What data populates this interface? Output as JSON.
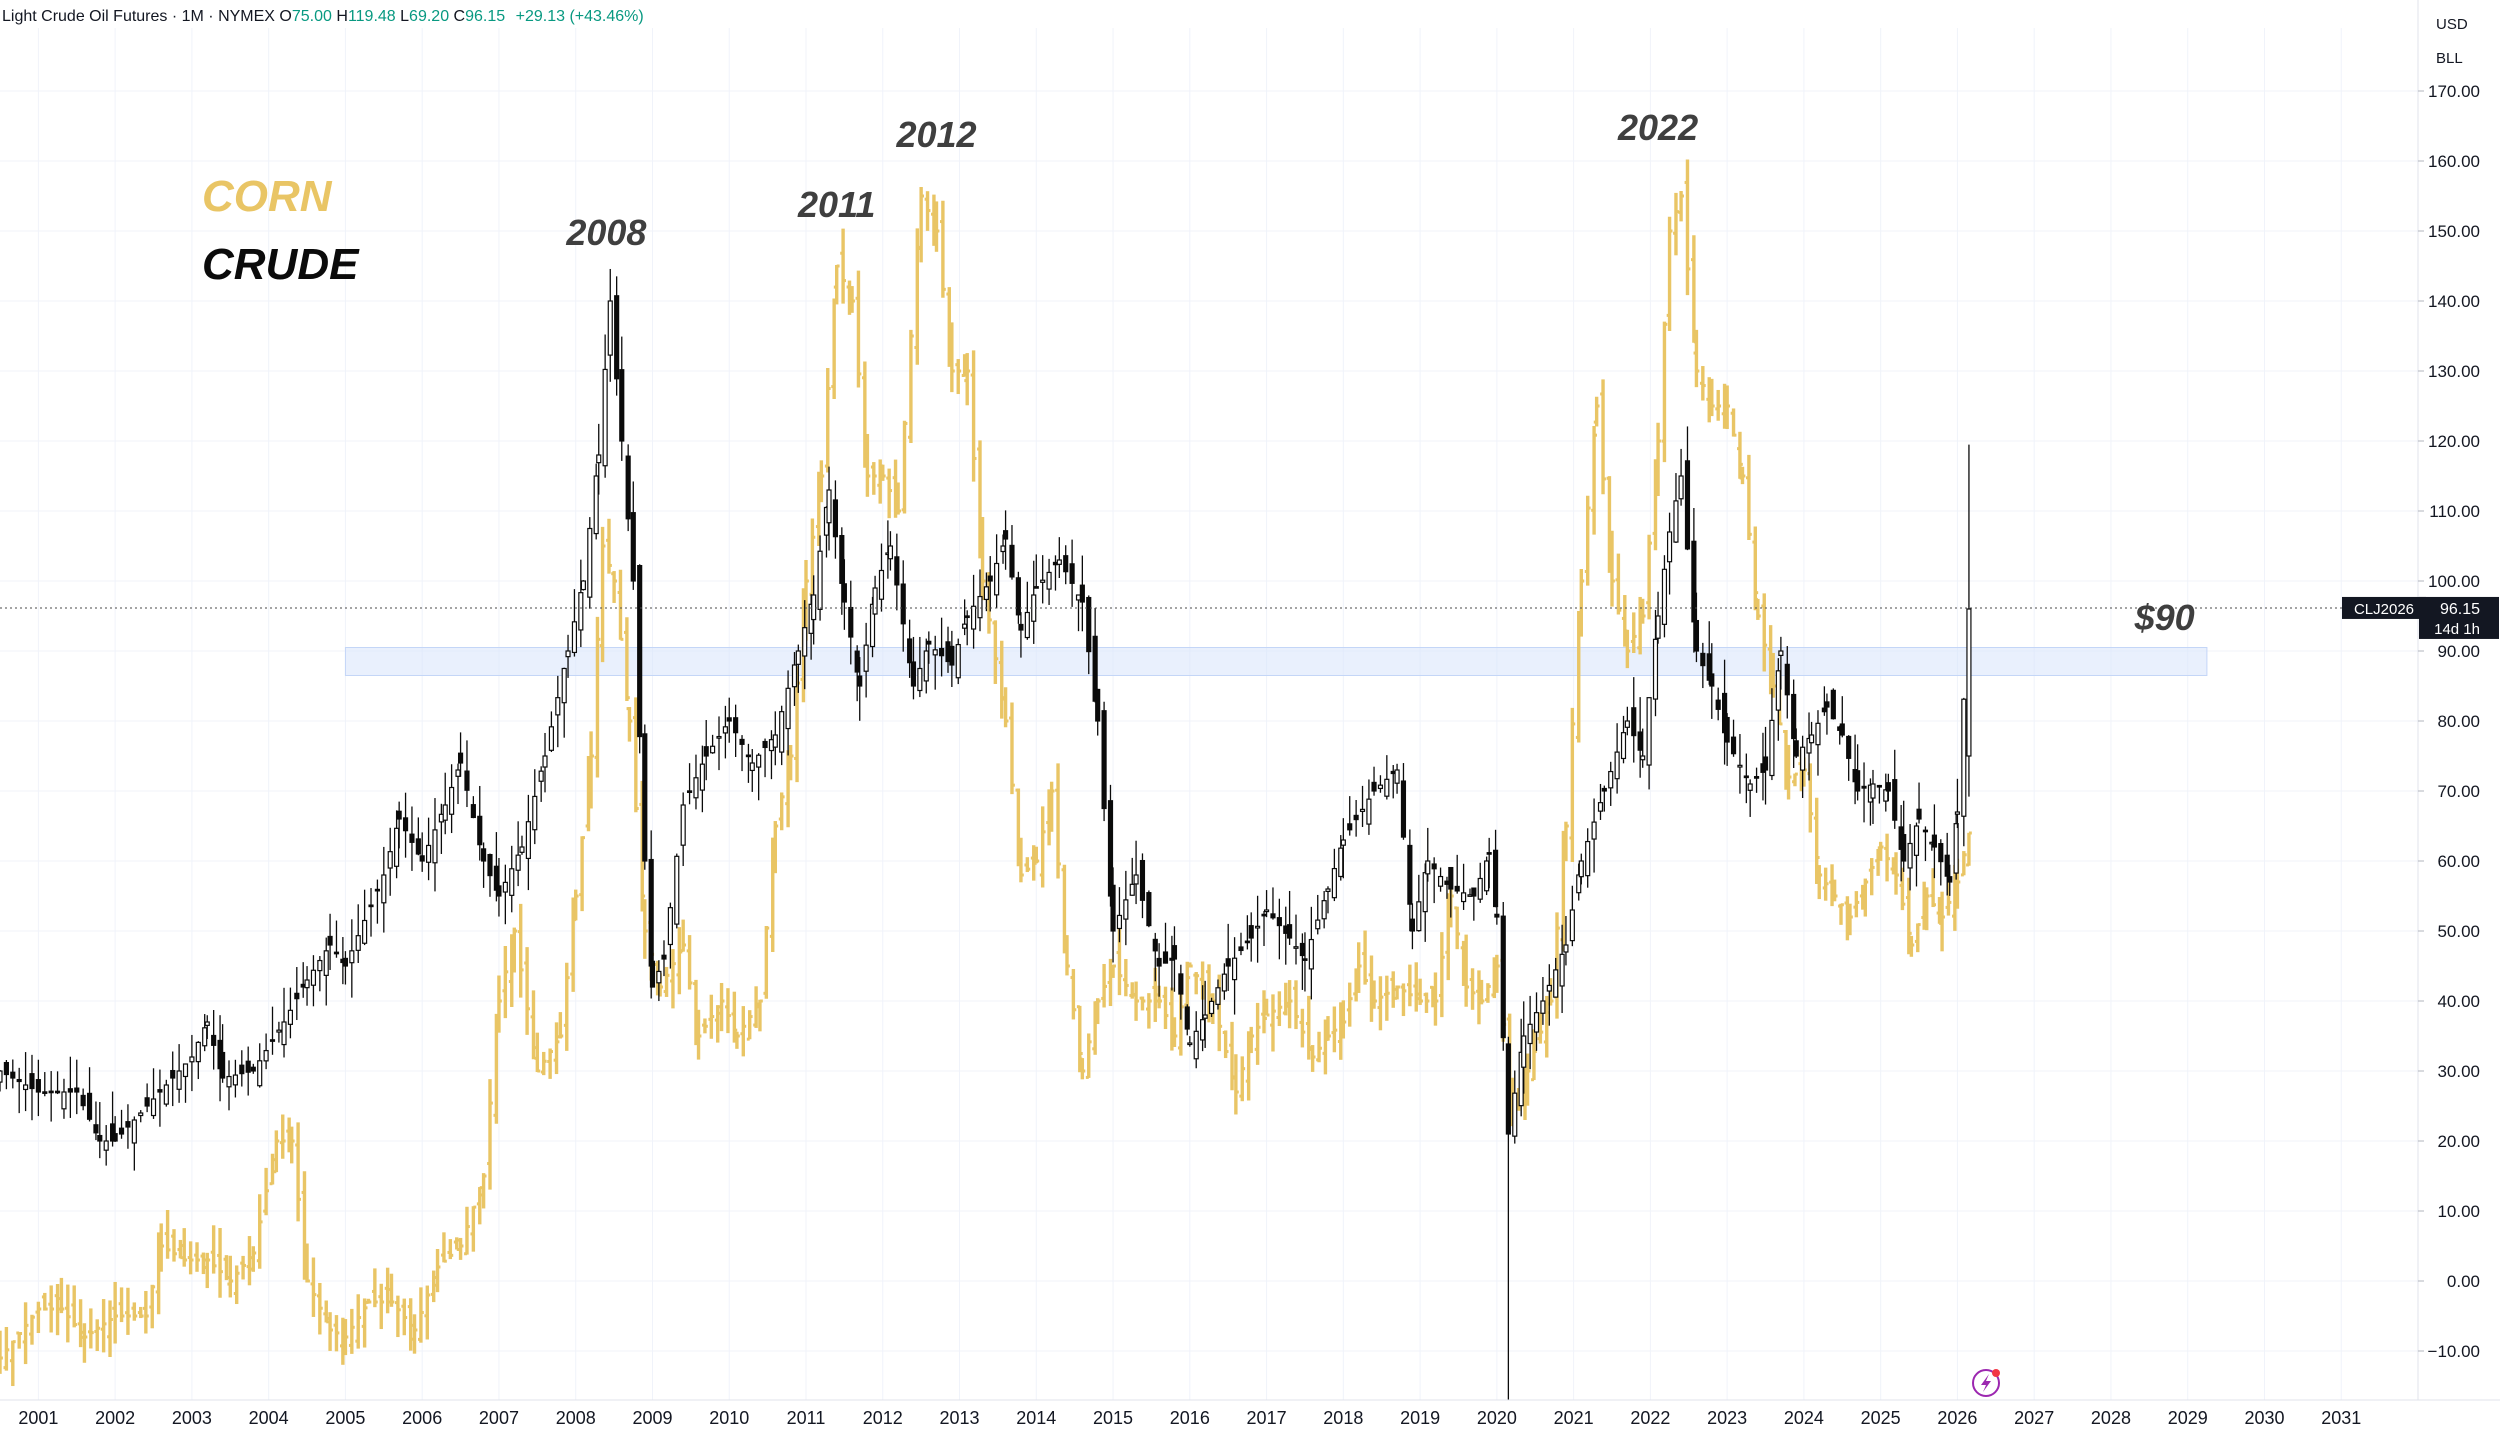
{
  "header": {
    "symbol": "Light Crude Oil Futures · 1M · NYMEX",
    "open_label": "O",
    "open_value": "75.00",
    "high_label": "H",
    "high_value": "119.48",
    "low_label": "L",
    "low_value": "69.20",
    "close_label": "C",
    "close_value": "96.15",
    "change": "+29.13 (+43.46%)"
  },
  "price_scale": {
    "currency": "USD",
    "unit": "BLL"
  },
  "legend": {
    "corn": "CORN",
    "crude": "CRUDE"
  },
  "colors": {
    "crude": "#0b0b0b",
    "corn": "#e9c565",
    "zone": "#d7e4fb",
    "label_text": "#3f3f3f",
    "axis_text": "#131722"
  },
  "price_tag": {
    "symbol": "CLJ2026",
    "price": "96.15",
    "countdown": "14d 1h"
  },
  "icons": [
    "lightning-icon"
  ],
  "chart_data": {
    "type": "candlestick",
    "title": "Light Crude Oil Futures · 1M · NYMEX",
    "x_axis": {
      "ticks": [
        "2001",
        "2002",
        "2003",
        "2004",
        "2005",
        "2006",
        "2007",
        "2008",
        "2009",
        "2010",
        "2011",
        "2012",
        "2013",
        "2014",
        "2015",
        "2016",
        "2017",
        "2018",
        "2019",
        "2020",
        "2021",
        "2022",
        "2023",
        "2024",
        "2025",
        "2026",
        "2027",
        "2028",
        "2029",
        "2030",
        "2031"
      ],
      "range": [
        2000.5,
        2032.0
      ]
    },
    "y_axis": {
      "ticks": [
        -10,
        0,
        10,
        20,
        30,
        40,
        50,
        60,
        70,
        80,
        90,
        100,
        110,
        120,
        130,
        140,
        150,
        160,
        170
      ],
      "range": [
        -17,
        179
      ],
      "position": "right"
    },
    "grid": true,
    "zone": {
      "x_from": 2005.0,
      "x_to": 2029.25,
      "y_from": 86.5,
      "y_to": 90.5
    },
    "current_price_line": 96.15,
    "annotations": [
      {
        "text": "2008",
        "x": 2008.4,
        "y": 148
      },
      {
        "text": "2011",
        "x": 2011.4,
        "y": 152
      },
      {
        "text": "2012",
        "x": 2012.7,
        "y": 162
      },
      {
        "text": "2022",
        "x": 2022.1,
        "y": 163
      },
      {
        "text": "$90",
        "x": 2028.7,
        "y": 93
      }
    ],
    "series": [
      {
        "name": "CRUDE",
        "kind": "candlestick",
        "points": [
          [
            2000.5,
            30
          ],
          [
            2001.0,
            27
          ],
          [
            2001.5,
            27
          ],
          [
            2001.8,
            20
          ],
          [
            2002.0,
            20
          ],
          [
            2002.5,
            26
          ],
          [
            2003.0,
            32
          ],
          [
            2003.2,
            37
          ],
          [
            2003.4,
            29
          ],
          [
            2003.8,
            30
          ],
          [
            2004.2,
            37
          ],
          [
            2004.5,
            43
          ],
          [
            2004.8,
            48
          ],
          [
            2005.0,
            45
          ],
          [
            2005.5,
            58
          ],
          [
            2005.7,
            66
          ],
          [
            2006.0,
            60
          ],
          [
            2006.3,
            68
          ],
          [
            2006.5,
            74
          ],
          [
            2006.8,
            60
          ],
          [
            2007.0,
            55
          ],
          [
            2007.3,
            62
          ],
          [
            2007.6,
            75
          ],
          [
            2007.9,
            90
          ],
          [
            2008.1,
            100
          ],
          [
            2008.3,
            118
          ],
          [
            2008.45,
            140
          ],
          [
            2008.6,
            120
          ],
          [
            2008.75,
            100
          ],
          [
            2008.9,
            60
          ],
          [
            2009.0,
            42
          ],
          [
            2009.15,
            46
          ],
          [
            2009.4,
            68
          ],
          [
            2009.7,
            75
          ],
          [
            2010.0,
            80
          ],
          [
            2010.3,
            74
          ],
          [
            2010.6,
            78
          ],
          [
            2010.9,
            90
          ],
          [
            2011.1,
            98
          ],
          [
            2011.3,
            113
          ],
          [
            2011.5,
            97
          ],
          [
            2011.7,
            85
          ],
          [
            2011.9,
            99
          ],
          [
            2012.1,
            105
          ],
          [
            2012.4,
            85
          ],
          [
            2012.6,
            91
          ],
          [
            2012.9,
            88
          ],
          [
            2013.1,
            95
          ],
          [
            2013.4,
            100
          ],
          [
            2013.6,
            106
          ],
          [
            2013.8,
            93
          ],
          [
            2014.0,
            99
          ],
          [
            2014.3,
            103
          ],
          [
            2014.6,
            97
          ],
          [
            2014.8,
            80
          ],
          [
            2015.0,
            50
          ],
          [
            2015.3,
            58
          ],
          [
            2015.6,
            45
          ],
          [
            2015.8,
            46
          ],
          [
            2016.0,
            34
          ],
          [
            2016.2,
            38
          ],
          [
            2016.5,
            45
          ],
          [
            2016.8,
            49
          ],
          [
            2017.0,
            53
          ],
          [
            2017.3,
            49
          ],
          [
            2017.5,
            46
          ],
          [
            2017.8,
            56
          ],
          [
            2018.0,
            63
          ],
          [
            2018.4,
            70
          ],
          [
            2018.7,
            73
          ],
          [
            2018.9,
            50
          ],
          [
            2019.1,
            60
          ],
          [
            2019.4,
            56
          ],
          [
            2019.7,
            55
          ],
          [
            2019.9,
            61
          ],
          [
            2020.0,
            52
          ],
          [
            2020.15,
            21
          ],
          [
            2020.35,
            35
          ],
          [
            2020.6,
            40
          ],
          [
            2020.9,
            48
          ],
          [
            2021.1,
            60
          ],
          [
            2021.4,
            70
          ],
          [
            2021.7,
            80
          ],
          [
            2021.9,
            75
          ],
          [
            2022.1,
            95
          ],
          [
            2022.25,
            107
          ],
          [
            2022.4,
            115
          ],
          [
            2022.6,
            90
          ],
          [
            2022.8,
            85
          ],
          [
            2023.0,
            77
          ],
          [
            2023.3,
            71
          ],
          [
            2023.5,
            73
          ],
          [
            2023.7,
            90
          ],
          [
            2023.9,
            75
          ],
          [
            2024.1,
            78
          ],
          [
            2024.3,
            82
          ],
          [
            2024.5,
            78
          ],
          [
            2024.7,
            70
          ],
          [
            2024.9,
            71
          ],
          [
            2025.1,
            70
          ],
          [
            2025.3,
            60
          ],
          [
            2025.5,
            66
          ],
          [
            2025.7,
            62
          ],
          [
            2025.9,
            57
          ],
          [
            2026.0,
            67
          ],
          [
            2026.15,
            96
          ]
        ]
      },
      {
        "name": "CORN",
        "kind": "bar",
        "points": [
          [
            2000.5,
            -11
          ],
          [
            2001.0,
            -4
          ],
          [
            2001.3,
            -4
          ],
          [
            2001.6,
            -8
          ],
          [
            2002.0,
            -5
          ],
          [
            2002.4,
            -5
          ],
          [
            2002.6,
            5
          ],
          [
            2002.9,
            3
          ],
          [
            2003.2,
            3
          ],
          [
            2003.5,
            0
          ],
          [
            2003.8,
            4
          ],
          [
            2004.1,
            20
          ],
          [
            2004.3,
            20
          ],
          [
            2004.5,
            0
          ],
          [
            2004.8,
            -7
          ],
          [
            2005.0,
            -8
          ],
          [
            2005.3,
            -3
          ],
          [
            2005.6,
            -3
          ],
          [
            2005.9,
            -7
          ],
          [
            2006.2,
            2
          ],
          [
            2006.5,
            5
          ],
          [
            2006.8,
            15
          ],
          [
            2007.0,
            40
          ],
          [
            2007.2,
            50
          ],
          [
            2007.5,
            30
          ],
          [
            2007.8,
            35
          ],
          [
            2008.0,
            55
          ],
          [
            2008.2,
            75
          ],
          [
            2008.35,
            105
          ],
          [
            2008.5,
            100
          ],
          [
            2008.7,
            80
          ],
          [
            2008.9,
            50
          ],
          [
            2009.1,
            42
          ],
          [
            2009.4,
            48
          ],
          [
            2009.6,
            35
          ],
          [
            2009.9,
            40
          ],
          [
            2010.1,
            35
          ],
          [
            2010.4,
            40
          ],
          [
            2010.6,
            65
          ],
          [
            2010.8,
            75
          ],
          [
            2011.0,
            100
          ],
          [
            2011.2,
            115
          ],
          [
            2011.4,
            145
          ],
          [
            2011.6,
            140
          ],
          [
            2011.8,
            115
          ],
          [
            2012.0,
            115
          ],
          [
            2012.2,
            110
          ],
          [
            2012.5,
            155
          ],
          [
            2012.7,
            150
          ],
          [
            2012.9,
            130
          ],
          [
            2013.1,
            130
          ],
          [
            2013.3,
            100
          ],
          [
            2013.6,
            80
          ],
          [
            2013.8,
            58
          ],
          [
            2014.0,
            60
          ],
          [
            2014.2,
            70
          ],
          [
            2014.4,
            45
          ],
          [
            2014.6,
            30
          ],
          [
            2014.8,
            40
          ],
          [
            2015.0,
            45
          ],
          [
            2015.3,
            40
          ],
          [
            2015.6,
            40
          ],
          [
            2015.8,
            35
          ],
          [
            2016.0,
            45
          ],
          [
            2016.3,
            40
          ],
          [
            2016.6,
            27
          ],
          [
            2016.8,
            35
          ],
          [
            2017.0,
            38
          ],
          [
            2017.3,
            40
          ],
          [
            2017.6,
            32
          ],
          [
            2017.8,
            35
          ],
          [
            2018.0,
            37
          ],
          [
            2018.2,
            45
          ],
          [
            2018.4,
            40
          ],
          [
            2018.7,
            42
          ],
          [
            2019.0,
            40
          ],
          [
            2019.2,
            40
          ],
          [
            2019.4,
            55
          ],
          [
            2019.6,
            42
          ],
          [
            2019.8,
            40
          ],
          [
            2020.0,
            45
          ],
          [
            2020.2,
            25
          ],
          [
            2020.4,
            30
          ],
          [
            2020.7,
            40
          ],
          [
            2020.9,
            65
          ],
          [
            2021.1,
            100
          ],
          [
            2021.3,
            125
          ],
          [
            2021.5,
            100
          ],
          [
            2021.7,
            90
          ],
          [
            2021.9,
            95
          ],
          [
            2022.1,
            120
          ],
          [
            2022.25,
            150
          ],
          [
            2022.4,
            155
          ],
          [
            2022.6,
            130
          ],
          [
            2022.8,
            125
          ],
          [
            2023.0,
            125
          ],
          [
            2023.2,
            115
          ],
          [
            2023.4,
            95
          ],
          [
            2023.6,
            85
          ],
          [
            2023.8,
            72
          ],
          [
            2024.0,
            73
          ],
          [
            2024.2,
            58
          ],
          [
            2024.4,
            55
          ],
          [
            2024.6,
            52
          ],
          [
            2024.8,
            57
          ],
          [
            2025.0,
            62
          ],
          [
            2025.2,
            58
          ],
          [
            2025.4,
            48
          ],
          [
            2025.6,
            55
          ],
          [
            2025.8,
            52
          ],
          [
            2026.0,
            57
          ],
          [
            2026.15,
            64
          ]
        ]
      }
    ]
  }
}
